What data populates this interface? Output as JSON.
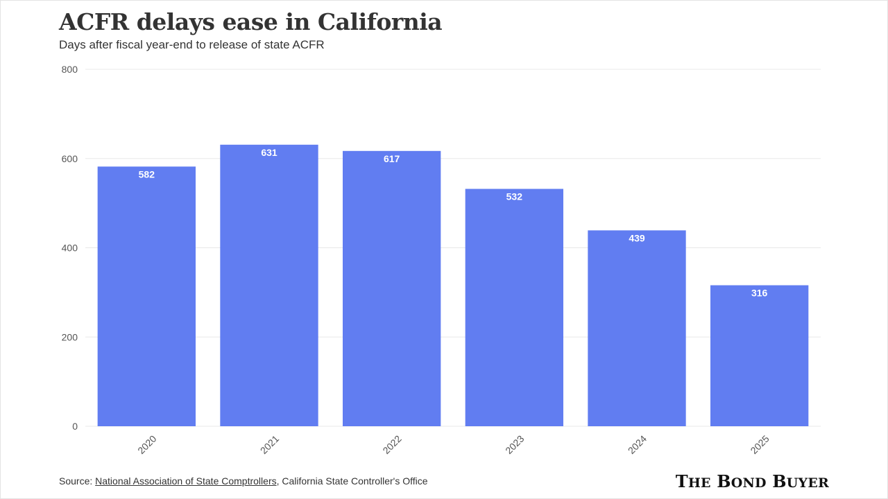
{
  "title": "ACFR delays ease in California",
  "subtitle": "Days after fiscal year-end to release of state ACFR",
  "source": {
    "prefix": "Source: ",
    "link1": "National Association of State Comptrollers",
    "separator": ", ",
    "rest": "California State Controller's Office"
  },
  "brand": {
    "word1_initial": "T",
    "word1_rest": "HE",
    "word2_initial": "B",
    "word2_rest": "OND",
    "word3_initial": "B",
    "word3_rest": "UYER"
  },
  "colors": {
    "bar": "#617df1",
    "gridline": "#e8e8e8",
    "axis_text": "#555555",
    "label_text": "#ffffff"
  },
  "chart_data": {
    "type": "bar",
    "categories": [
      "2020",
      "2021",
      "2022",
      "2023",
      "2024",
      "2025"
    ],
    "values": [
      582,
      631,
      617,
      532,
      439,
      316
    ],
    "title": "ACFR delays ease in California",
    "xlabel": "",
    "ylabel": "",
    "ylim": [
      0,
      800
    ],
    "yticks": [
      0,
      200,
      400,
      600,
      800
    ],
    "grid": true,
    "data_labels": true
  }
}
